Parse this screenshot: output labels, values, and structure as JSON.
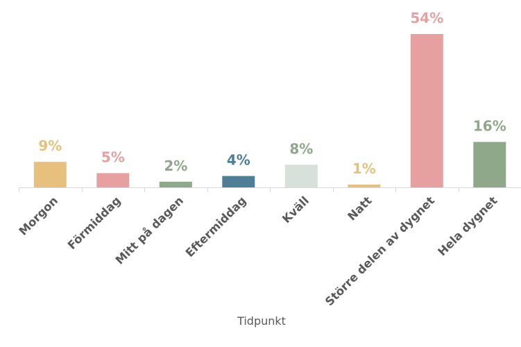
{
  "chart_data": {
    "type": "bar",
    "title": "",
    "xlabel": "Tidpunkt",
    "ylabel": "",
    "ylim": [
      0,
      54
    ],
    "grid": false,
    "categories": [
      "Morgon",
      "Förmiddag",
      "Mitt på dagen",
      "Eftermiddag",
      "Kväll",
      "Natt",
      "Större delen av dygnet",
      "Hela dygnet"
    ],
    "values": [
      9,
      5,
      2,
      4,
      8,
      1,
      54,
      16
    ],
    "value_labels": [
      "9%",
      "5%",
      "2%",
      "4%",
      "8%",
      "1%",
      "54%",
      "16%"
    ],
    "colors": [
      "#E8C07D",
      "#E6A0A0",
      "#8FA88A",
      "#4F7F96",
      "#D8E0DA",
      "#E8C07D",
      "#E6A0A0",
      "#8FA88A"
    ]
  }
}
